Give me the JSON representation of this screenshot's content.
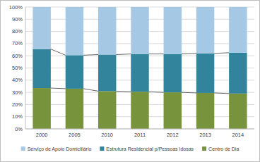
{
  "chart_data": {
    "type": "bar",
    "stacked": true,
    "grid": true,
    "legend": "bottom",
    "categories": [
      "2000",
      "2005",
      "2010",
      "2011",
      "2012",
      "2013",
      "2014"
    ],
    "series": [
      {
        "name": "Centro de Dia",
        "color": "#77933c",
        "values": [
          33.5,
          33,
          31,
          30.5,
          30,
          29.5,
          29
        ]
      },
      {
        "name": "Estrutura Residencial p/Pessoas Idosas",
        "color": "#31849b",
        "values": [
          32,
          27.5,
          30,
          31,
          31.5,
          32.5,
          33.5
        ]
      },
      {
        "name": "Serviço de Apoio Domiciliário",
        "color": "#a5c8e4",
        "values": [
          34.5,
          39.5,
          39,
          38.5,
          38.5,
          38,
          37.5
        ]
      }
    ],
    "ylim": [
      0,
      100
    ],
    "yticks": [
      {
        "value": 0,
        "label": "0%"
      },
      {
        "value": 10,
        "label": "10%"
      },
      {
        "value": 20,
        "label": "20%"
      },
      {
        "value": 30,
        "label": "30%"
      },
      {
        "value": 40,
        "label": "40%"
      },
      {
        "value": 50,
        "label": "50%"
      },
      {
        "value": 60,
        "label": "60%"
      },
      {
        "value": 70,
        "label": "70%"
      },
      {
        "value": 80,
        "label": "80%"
      },
      {
        "value": 90,
        "label": "90%"
      },
      {
        "value": 100,
        "label": "100%"
      }
    ]
  }
}
